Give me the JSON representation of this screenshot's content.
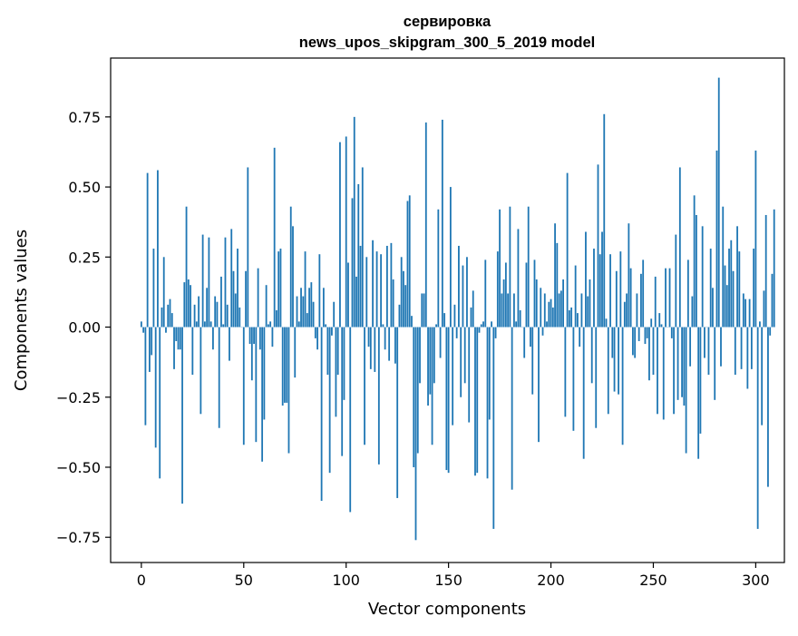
{
  "chart_data": {
    "type": "bar",
    "title_line1": "сервировка",
    "title_line2": "news_upos_skipgram_300_5_2019 model",
    "xlabel": "Vector components",
    "ylabel": "Components values",
    "xlim": [
      -15,
      314
    ],
    "ylim": [
      -0.84,
      0.96
    ],
    "xticks": [
      0,
      50,
      100,
      150,
      200,
      250,
      300
    ],
    "yticks": [
      -0.75,
      -0.5,
      -0.25,
      0.0,
      0.25,
      0.5,
      0.75
    ],
    "ytick_labels": [
      "−0.75",
      "−0.50",
      "−0.25",
      "0.00",
      "0.25",
      "0.50",
      "0.75"
    ],
    "bar_color": "#1f77b4",
    "grid": false,
    "legend": "none",
    "values": [
      0.02,
      -0.02,
      -0.35,
      0.55,
      -0.16,
      -0.1,
      0.28,
      -0.43,
      0.56,
      -0.54,
      0.07,
      0.25,
      -0.02,
      0.08,
      0.1,
      0.05,
      -0.15,
      -0.05,
      -0.08,
      -0.08,
      -0.63,
      0.16,
      0.43,
      0.17,
      0.15,
      -0.17,
      0.08,
      0.02,
      0.11,
      -0.31,
      0.33,
      0.02,
      0.14,
      0.32,
      0.02,
      -0.08,
      0.11,
      0.09,
      -0.36,
      0.18,
      0.01,
      0.32,
      0.08,
      -0.12,
      0.35,
      0.2,
      0.12,
      0.28,
      0.07,
      0.0,
      -0.42,
      0.2,
      0.57,
      -0.06,
      -0.19,
      -0.06,
      -0.41,
      0.21,
      -0.08,
      -0.48,
      -0.33,
      0.15,
      0.01,
      0.02,
      -0.07,
      0.64,
      0.06,
      0.27,
      0.28,
      -0.28,
      -0.27,
      -0.27,
      -0.45,
      0.43,
      0.36,
      -0.18,
      0.11,
      0.02,
      0.14,
      0.11,
      0.27,
      0.05,
      0.14,
      0.16,
      0.09,
      -0.04,
      -0.08,
      0.26,
      -0.62,
      0.14,
      0.01,
      -0.17,
      -0.52,
      -0.03,
      0.09,
      -0.32,
      -0.17,
      0.66,
      -0.46,
      -0.26,
      0.68,
      0.23,
      -0.66,
      0.46,
      0.75,
      0.18,
      0.51,
      0.29,
      0.57,
      -0.42,
      0.25,
      -0.07,
      -0.15,
      0.31,
      -0.16,
      0.27,
      -0.49,
      0.26,
      0.01,
      -0.08,
      0.29,
      -0.12,
      0.3,
      0.17,
      -0.13,
      -0.61,
      0.08,
      0.25,
      0.2,
      0.15,
      0.45,
      0.47,
      0.04,
      -0.5,
      -0.76,
      -0.45,
      -0.2,
      0.12,
      0.12,
      0.73,
      -0.28,
      -0.24,
      -0.42,
      -0.2,
      0.01,
      0.42,
      -0.11,
      0.74,
      0.05,
      -0.51,
      -0.52,
      0.5,
      -0.35,
      0.08,
      -0.04,
      0.29,
      -0.25,
      0.22,
      -0.2,
      0.25,
      -0.34,
      0.07,
      0.13,
      -0.53,
      -0.52,
      -0.02,
      0.01,
      0.02,
      0.24,
      -0.54,
      -0.33,
      0.02,
      -0.72,
      -0.04,
      0.27,
      0.42,
      0.12,
      0.17,
      0.23,
      0.12,
      0.43,
      -0.58,
      0.12,
      0.02,
      0.35,
      0.06,
      0.0,
      -0.11,
      0.23,
      0.43,
      -0.07,
      -0.24,
      0.24,
      0.17,
      -0.41,
      0.14,
      -0.03,
      0.12,
      0.02,
      0.09,
      0.1,
      0.07,
      0.37,
      0.3,
      0.12,
      0.13,
      0.17,
      -0.32,
      0.55,
      0.06,
      0.07,
      -0.37,
      0.22,
      0.05,
      -0.07,
      0.12,
      -0.47,
      0.34,
      0.11,
      0.17,
      -0.2,
      0.28,
      -0.36,
      0.58,
      0.26,
      0.34,
      0.76,
      0.03,
      -0.31,
      0.26,
      -0.11,
      -0.23,
      0.2,
      -0.24,
      0.27,
      -0.42,
      0.09,
      0.12,
      0.37,
      0.21,
      -0.1,
      -0.11,
      0.12,
      -0.05,
      0.19,
      0.24,
      -0.06,
      -0.04,
      -0.19,
      0.03,
      -0.17,
      0.18,
      -0.31,
      0.05,
      0.01,
      -0.33,
      0.21,
      0.0,
      0.21,
      -0.04,
      -0.31,
      0.33,
      -0.26,
      0.57,
      -0.25,
      -0.28,
      -0.45,
      0.24,
      -0.14,
      0.11,
      0.47,
      0.4,
      -0.47,
      -0.38,
      0.36,
      -0.11,
      0.0,
      -0.17,
      0.28,
      0.14,
      -0.26,
      0.63,
      0.89,
      -0.14,
      0.43,
      0.22,
      0.15,
      0.28,
      0.31,
      0.2,
      -0.17,
      0.36,
      0.27,
      -0.15,
      0.12,
      0.1,
      -0.22,
      0.1,
      -0.15,
      0.28,
      0.63,
      -0.72,
      0.02,
      -0.35,
      0.13,
      0.4,
      -0.57,
      -0.03,
      0.19,
      0.42
    ]
  }
}
